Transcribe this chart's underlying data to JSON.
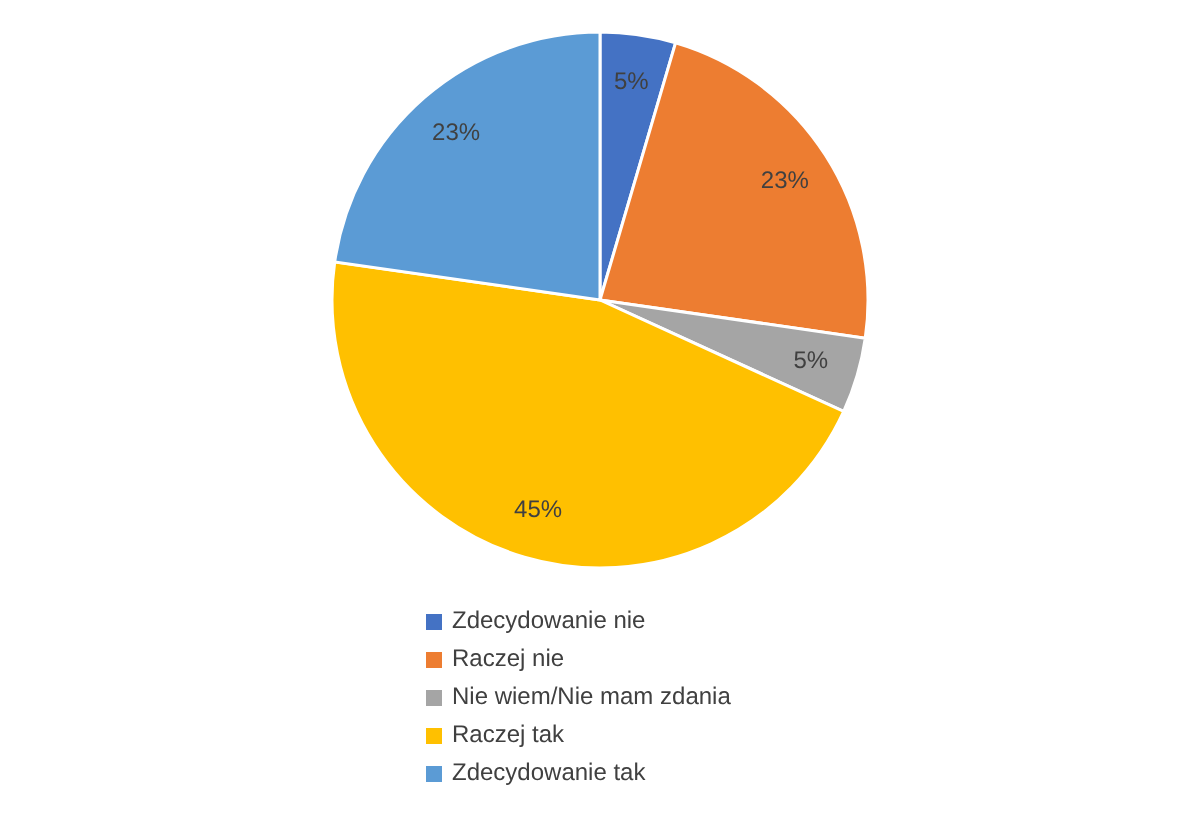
{
  "chart_data": {
    "type": "pie",
    "categories": [
      "Zdecydowanie nie",
      "Raczej nie",
      "Nie wiem/Nie mam zdania",
      "Raczej tak",
      "Zdecydowanie tak"
    ],
    "values": [
      4.55,
      22.73,
      4.55,
      45.45,
      22.73
    ],
    "colors": [
      "#4472c4",
      "#ed7d31",
      "#a5a5a5",
      "#ffc000",
      "#5b9bd5"
    ],
    "value_labels": [
      "5%",
      "23%",
      "5%",
      "45%",
      "23%"
    ],
    "legend": "bottom"
  }
}
